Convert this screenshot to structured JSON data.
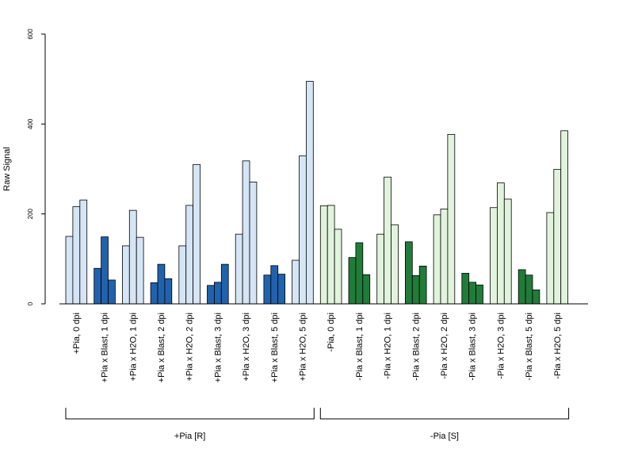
{
  "chart_data": {
    "type": "bar",
    "ylabel": "Raw Signal",
    "ylim": [
      0,
      600
    ],
    "yticks": [
      "0",
      "200",
      "400",
      "600"
    ],
    "grid": false,
    "categories": [
      "+Pia, 0 dpi",
      "+Pia x Blast, 1 dpi",
      "+Pia x H2O, 1 dpi",
      "+Pia x Blast, 2 dpi",
      "+Pia x H2O, 2 dpi",
      "+Pia x Blast, 3 dpi",
      "+Pia x H2O, 3 dpi",
      "+Pia x Blast, 5 dpi",
      "+Pia x H2O, 5 dpi",
      "-Pia, 0 dpi",
      "-Pia x Blast, 1 dpi",
      "-Pia x H2O, 1 dpi",
      "-Pia x Blast, 2 dpi",
      "-Pia x H2O, 2 dpi",
      "-Pia x Blast, 3 dpi",
      "-Pia x H2O, 3 dpi",
      "-Pia x Blast, 5 dpi",
      "-Pia x H2O, 5 dpi"
    ],
    "replicates": [
      [
        150,
        216,
        231
      ],
      [
        79,
        149,
        53
      ],
      [
        129,
        208,
        148
      ],
      [
        47,
        88,
        56
      ],
      [
        129,
        219,
        310
      ],
      [
        41,
        48,
        88
      ],
      [
        155,
        318,
        271
      ],
      [
        64,
        85,
        66
      ],
      [
        97,
        329,
        495
      ],
      [
        218,
        219,
        166
      ],
      [
        103,
        136,
        65
      ],
      [
        155,
        282,
        176
      ],
      [
        138,
        63,
        84
      ],
      [
        198,
        211,
        377
      ],
      [
        68,
        48,
        42
      ],
      [
        214,
        269,
        233
      ],
      [
        76,
        64,
        31
      ],
      [
        203,
        299,
        385
      ]
    ],
    "bar_colors": [
      "#d5e5f5",
      "#2162ad",
      "#d5e5f5",
      "#2162ad",
      "#d5e5f5",
      "#2162ad",
      "#d5e5f5",
      "#2162ad",
      "#d5e5f5",
      "#e1f3dc",
      "#217c39",
      "#e1f3dc",
      "#217c39",
      "#e1f3dc",
      "#217c39",
      "#e1f3dc",
      "#217c39",
      "#e1f3dc"
    ],
    "groups": [
      {
        "label": "+Pia [R]",
        "from": 0,
        "to": 8
      },
      {
        "label": "-Pia [S]",
        "from": 9,
        "to": 17
      }
    ]
  }
}
